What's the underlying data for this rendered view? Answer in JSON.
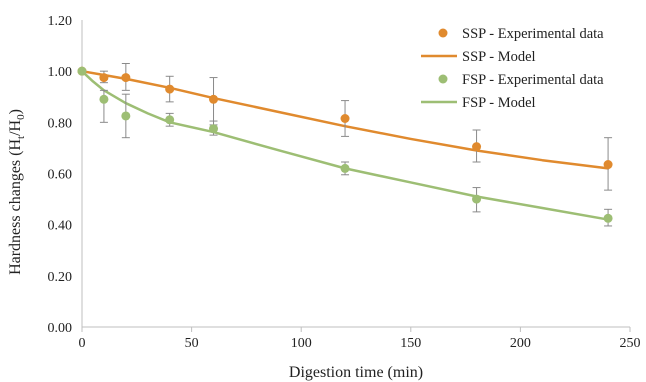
{
  "chart_data": {
    "type": "scatter",
    "xlabel": "Digestion time (min)",
    "ylabel_parts": [
      "Hardness changes (H",
      "t",
      "/H",
      "0",
      ")"
    ],
    "xlim": [
      0,
      250
    ],
    "ylim": [
      0,
      1.2
    ],
    "x_ticks": [
      "0",
      "50",
      "100",
      "150",
      "200",
      "250"
    ],
    "y_ticks": [
      "0.00",
      "0.20",
      "0.40",
      "0.60",
      "0.80",
      "1.00",
      "1.20"
    ],
    "legend_position": "top-right",
    "grid": false,
    "colors": {
      "ssp": "#E08A2E",
      "fsp": "#9DBE74",
      "error_bar": "#8a8a8a",
      "axis": "#bfbfbf"
    },
    "series": [
      {
        "name": "SSP - Experimental data",
        "kind": "points",
        "color": "#E08A2E",
        "x": [
          0,
          10,
          20,
          40,
          60,
          120,
          180,
          240
        ],
        "y": [
          1.0,
          0.975,
          0.975,
          0.93,
          0.89,
          0.815,
          0.705,
          0.635
        ],
        "err_low": [
          1.0,
          0.955,
          0.925,
          0.88,
          0.79,
          0.745,
          0.645,
          0.535
        ],
        "err_high": [
          1.0,
          1.0,
          1.03,
          0.98,
          0.975,
          0.885,
          0.77,
          0.74
        ]
      },
      {
        "name": "SSP - Model",
        "kind": "line",
        "color": "#E08A2E",
        "x": [
          0,
          10,
          20,
          40,
          60,
          90,
          120,
          150,
          180,
          210,
          240
        ],
        "y": [
          1.0,
          0.985,
          0.97,
          0.935,
          0.895,
          0.84,
          0.785,
          0.735,
          0.69,
          0.652,
          0.62
        ]
      },
      {
        "name": "FSP - Experimental data",
        "kind": "points",
        "color": "#9DBE74",
        "x": [
          0,
          10,
          20,
          40,
          60,
          120,
          180,
          240
        ],
        "y": [
          1.0,
          0.89,
          0.825,
          0.81,
          0.775,
          0.62,
          0.5,
          0.425
        ],
        "err_low": [
          1.0,
          0.8,
          0.74,
          0.785,
          0.75,
          0.595,
          0.45,
          0.395
        ],
        "err_high": [
          1.0,
          0.925,
          0.91,
          0.835,
          0.805,
          0.645,
          0.545,
          0.46
        ]
      },
      {
        "name": "FSP - Model",
        "kind": "line",
        "color": "#9DBE74",
        "x": [
          0,
          5,
          10,
          20,
          30,
          40,
          60,
          90,
          120,
          150,
          180,
          210,
          240
        ],
        "y": [
          1.0,
          0.96,
          0.925,
          0.875,
          0.835,
          0.8,
          0.762,
          0.69,
          0.62,
          0.565,
          0.51,
          0.465,
          0.42
        ]
      }
    ]
  }
}
